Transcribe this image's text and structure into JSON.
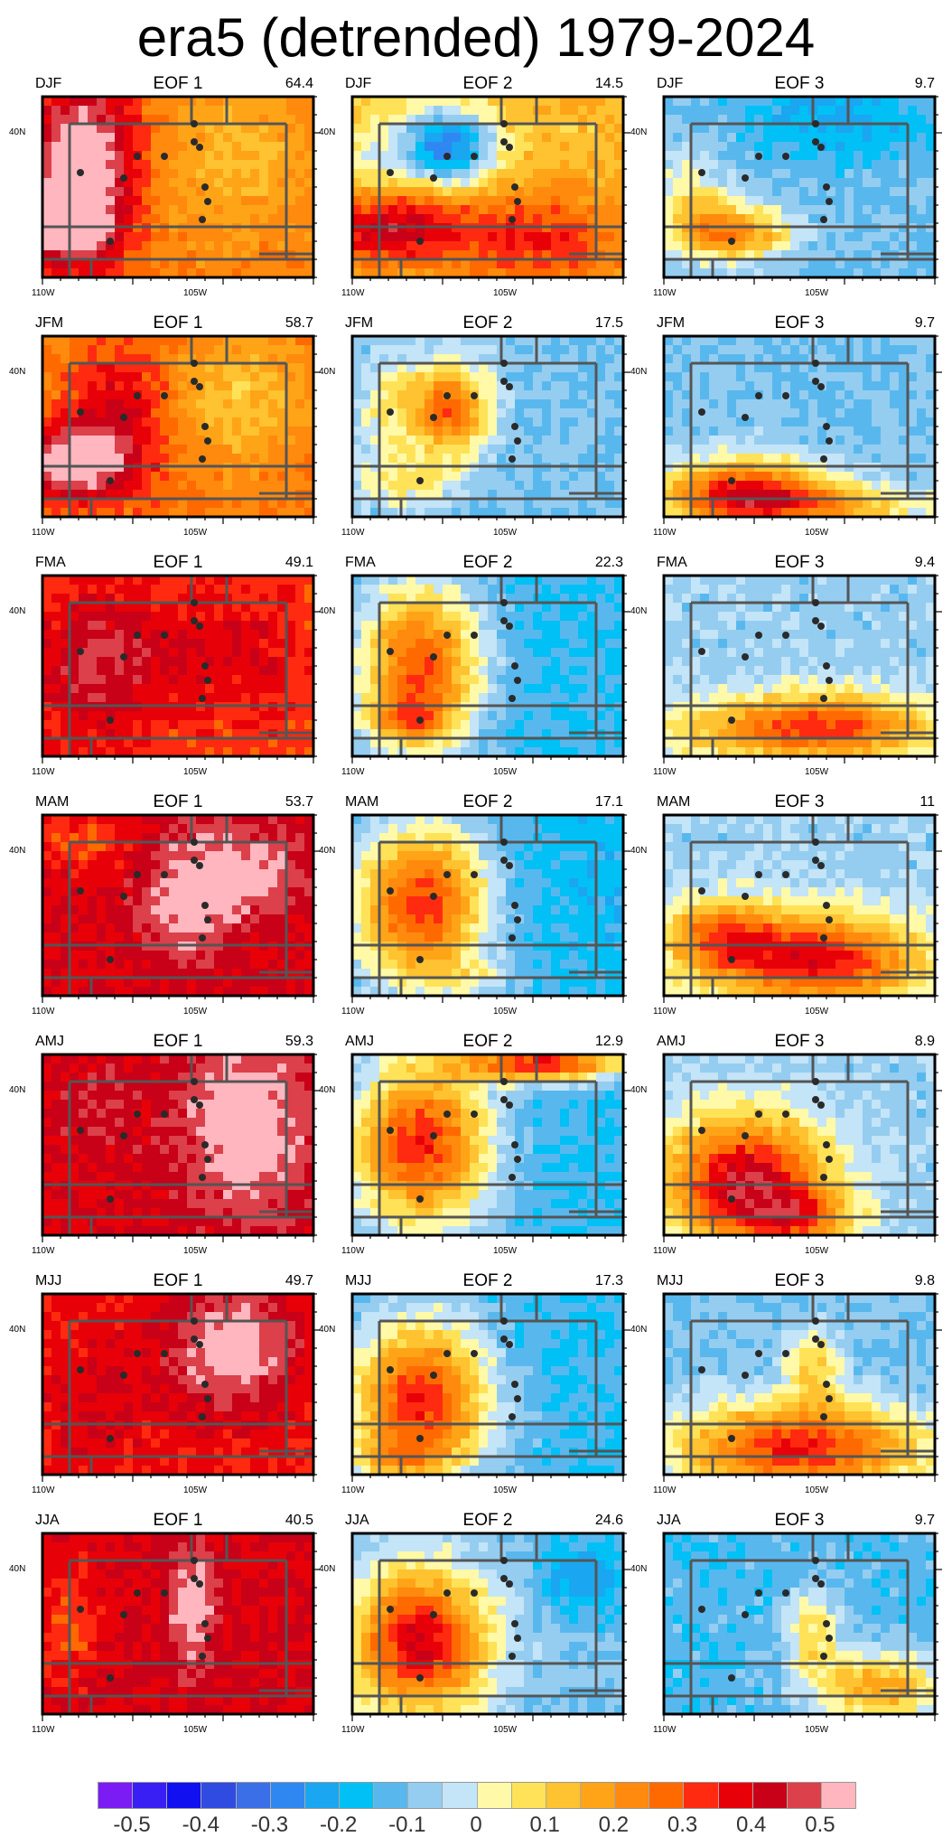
{
  "title": "era5 (detrended) 1979-2024",
  "axis_labels": {
    "x_left": "110W",
    "x_mid": "105W",
    "y": "40N"
  },
  "colors": {
    "background": "#ffffff",
    "dot": "#2a2a2a",
    "boundary": "#555555"
  },
  "colorbar": {
    "labels": [
      "-0.5",
      "-0.4",
      "-0.3",
      "-0.2",
      "-0.1",
      "0",
      "0.1",
      "0.2",
      "0.3",
      "0.4",
      "0.5"
    ],
    "colors": [
      "#7b1cf5",
      "#3a1ff5",
      "#1010f0",
      "#2f4be0",
      "#3b6fe8",
      "#2f88f2",
      "#1aa6f0",
      "#00c0f5",
      "#58b8ee",
      "#95cdf0",
      "#c4e4f7",
      "#fff9a8",
      "#ffe257",
      "#ffc230",
      "#ffa417",
      "#ff8a0d",
      "#ff6a00",
      "#ff2a10",
      "#e80008",
      "#c80018",
      "#dc404a",
      "#ffb6be"
    ]
  },
  "chart_data": {
    "type": "heatmap",
    "rows": [
      "DJF",
      "JFM",
      "FMA",
      "MAM",
      "AMJ",
      "MJJ",
      "JJA"
    ],
    "columns": [
      "EOF 1",
      "EOF 2",
      "EOF 3"
    ],
    "variance_explained": [
      [
        "64.4",
        "14.5",
        "9.7"
      ],
      [
        "58.7",
        "17.5",
        "9.7"
      ],
      [
        "49.1",
        "22.3",
        "9.4"
      ],
      [
        "53.7",
        "17.1",
        "11"
      ],
      [
        "59.3",
        "12.9",
        "8.9"
      ],
      [
        "49.7",
        "17.3",
        "9.8"
      ],
      [
        "40.5",
        "24.6",
        "9.7"
      ]
    ],
    "fields": [
      [
        {
          "base": 0.2,
          "blobs": [
            [
              0.15,
              0.35,
              0.2,
              0.45,
              0.35
            ],
            [
              0.1,
              0.72,
              0.15,
              0.2,
              0.3
            ],
            [
              0.7,
              0.3,
              0.35,
              0.5,
              -0.1
            ]
          ]
        },
        {
          "base": 0.08,
          "blobs": [
            [
              0.35,
              0.28,
              0.18,
              0.22,
              -0.42
            ],
            [
              0.12,
              0.72,
              0.3,
              0.22,
              0.3
            ],
            [
              0.7,
              0.8,
              0.35,
              0.3,
              0.2
            ],
            [
              0.05,
              0.35,
              0.12,
              0.3,
              -0.1
            ]
          ]
        },
        {
          "base": -0.15,
          "blobs": [
            [
              0.25,
              0.75,
              0.2,
              0.15,
              0.35
            ],
            [
              0.1,
              0.55,
              0.12,
              0.25,
              0.15
            ],
            [
              0.65,
              0.1,
              0.35,
              0.25,
              -0.12
            ]
          ]
        }
      ],
      [
        {
          "base": 0.2,
          "blobs": [
            [
              0.12,
              0.7,
              0.2,
              0.2,
              0.35
            ],
            [
              0.3,
              0.4,
              0.18,
              0.35,
              0.15
            ],
            [
              0.72,
              0.35,
              0.25,
              0.35,
              -0.13
            ]
          ]
        },
        {
          "base": -0.15,
          "blobs": [
            [
              0.35,
              0.4,
              0.15,
              0.25,
              0.4
            ],
            [
              0.2,
              0.8,
              0.2,
              0.15,
              0.15
            ],
            [
              0.12,
              0.4,
              0.1,
              0.3,
              0.12
            ]
          ]
        },
        {
          "base": -0.15,
          "blobs": [
            [
              0.3,
              0.85,
              0.3,
              0.18,
              0.42
            ],
            [
              0.55,
              0.95,
              0.45,
              0.12,
              0.25
            ]
          ]
        }
      ],
      [
        {
          "base": 0.25,
          "blobs": [
            [
              0.2,
              0.5,
              0.25,
              0.45,
              0.15
            ],
            [
              0.6,
              0.4,
              0.25,
              0.35,
              0.08
            ],
            [
              0.85,
              0.5,
              0.15,
              0.4,
              0.05
            ]
          ]
        },
        {
          "base": -0.2,
          "blobs": [
            [
              0.25,
              0.5,
              0.22,
              0.45,
              0.45
            ],
            [
              0.2,
              0.8,
              0.15,
              0.12,
              0.2
            ]
          ]
        },
        {
          "base": -0.12,
          "blobs": [
            [
              0.5,
              0.85,
              0.5,
              0.18,
              0.32
            ],
            [
              0.65,
              0.8,
              0.3,
              0.2,
              0.1
            ]
          ]
        }
      ],
      [
        {
          "base": 0.35,
          "blobs": [
            [
              0.55,
              0.45,
              0.18,
              0.35,
              0.15
            ],
            [
              0.8,
              0.3,
              0.2,
              0.25,
              0.1
            ],
            [
              0.15,
              0.15,
              0.2,
              0.15,
              -0.1
            ]
          ]
        },
        {
          "base": -0.22,
          "blobs": [
            [
              0.25,
              0.5,
              0.25,
              0.45,
              0.5
            ],
            [
              0.45,
              0.9,
              0.2,
              0.1,
              0.1
            ]
          ]
        },
        {
          "base": -0.12,
          "blobs": [
            [
              0.55,
              0.8,
              0.4,
              0.25,
              0.45
            ],
            [
              0.2,
              0.65,
              0.2,
              0.2,
              0.25
            ]
          ]
        }
      ],
      [
        {
          "base": 0.35,
          "blobs": [
            [
              0.75,
              0.4,
              0.25,
              0.5,
              0.15
            ],
            [
              0.2,
              0.3,
              0.15,
              0.25,
              0.05
            ]
          ]
        },
        {
          "base": -0.2,
          "blobs": [
            [
              0.25,
              0.5,
              0.25,
              0.45,
              0.5
            ],
            [
              0.7,
              0.05,
              0.3,
              0.1,
              0.5
            ]
          ]
        },
        {
          "base": -0.12,
          "blobs": [
            [
              0.3,
              0.7,
              0.3,
              0.35,
              0.5
            ],
            [
              0.5,
              0.9,
              0.2,
              0.15,
              0.25
            ]
          ]
        }
      ],
      [
        {
          "base": 0.3,
          "blobs": [
            [
              0.7,
              0.3,
              0.25,
              0.35,
              0.2
            ],
            [
              0.2,
              0.6,
              0.18,
              0.35,
              0.05
            ]
          ]
        },
        {
          "base": -0.2,
          "blobs": [
            [
              0.25,
              0.6,
              0.25,
              0.45,
              0.5
            ],
            [
              0.15,
              0.9,
              0.15,
              0.1,
              0.15
            ]
          ]
        },
        {
          "base": -0.15,
          "blobs": [
            [
              0.5,
              0.85,
              0.45,
              0.25,
              0.45
            ],
            [
              0.55,
              0.4,
              0.1,
              0.2,
              0.2
            ]
          ]
        }
      ],
      [
        {
          "base": 0.35,
          "blobs": [
            [
              0.55,
              0.4,
              0.08,
              0.35,
              0.15
            ],
            [
              0.1,
              0.5,
              0.12,
              0.3,
              -0.1
            ]
          ]
        },
        {
          "base": -0.15,
          "blobs": [
            [
              0.25,
              0.6,
              0.25,
              0.4,
              0.5
            ],
            [
              0.85,
              0.25,
              0.15,
              0.2,
              -0.15
            ]
          ]
        },
        {
          "base": -0.18,
          "blobs": [
            [
              0.8,
              0.85,
              0.25,
              0.2,
              0.3
            ],
            [
              0.55,
              0.55,
              0.1,
              0.25,
              0.2
            ]
          ]
        }
      ]
    ],
    "stations": [
      [
        0.56,
        0.25
      ],
      [
        0.58,
        0.28
      ],
      [
        0.56,
        0.15
      ],
      [
        0.6,
        0.5
      ],
      [
        0.61,
        0.58
      ],
      [
        0.59,
        0.68
      ],
      [
        0.45,
        0.33
      ],
      [
        0.35,
        0.33
      ],
      [
        0.3,
        0.45
      ],
      [
        0.14,
        0.42
      ],
      [
        0.25,
        0.8
      ]
    ]
  }
}
